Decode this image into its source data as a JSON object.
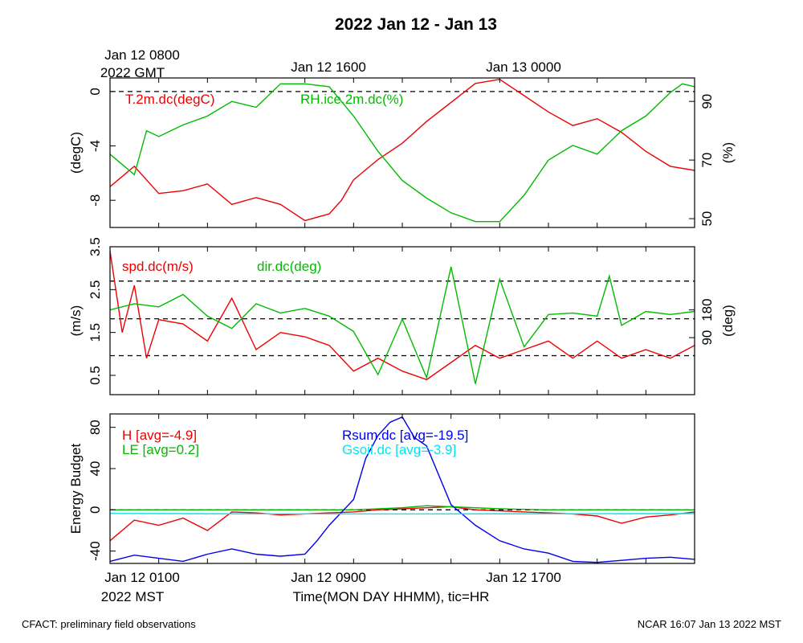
{
  "title": "2022 Jan 12 - Jan 13",
  "top_axis": {
    "first_label_line1": "Jan 12 0800",
    "first_label_line2": "2022 GMT",
    "labels": [
      "Jan 12 1600",
      "Jan 13 0000"
    ]
  },
  "bottom_axis": {
    "labels": [
      "Jan 12 0100",
      "Jan 12 0900",
      "Jan 12 1700"
    ],
    "tz_label": "2022 MST",
    "xlabel": "Time(MON DAY HHMM), tic=HR"
  },
  "footer": {
    "left": "CFACT: preliminary field observations",
    "right": "NCAR 16:07 Jan 13 2022 MST"
  },
  "colors": {
    "red": "#ee0000",
    "green": "#00bb00",
    "blue": "#0000ee",
    "cyan": "#00e5ee",
    "black": "#000000"
  },
  "chart_data": [
    {
      "type": "line",
      "panel": "temperature-humidity",
      "x_range_hours": [
        0,
        24
      ],
      "left_axis": {
        "label": "(degC)",
        "ylim": [
          -10,
          1
        ],
        "ticks": [
          0,
          -4,
          -8
        ],
        "tick_labels": [
          "0",
          "-4",
          "-8"
        ]
      },
      "right_axis": {
        "label": "(%)",
        "ylim": [
          47,
          98
        ],
        "ticks": [
          90,
          70,
          50
        ],
        "tick_labels": [
          "90",
          "70",
          "50"
        ]
      },
      "reference_lines": [
        {
          "axis": "left",
          "y": 0
        }
      ],
      "series": [
        {
          "name": "T.2m.dc(degC)",
          "axis": "left",
          "color": "#ee0000",
          "x": [
            0,
            1,
            2,
            3,
            4,
            5,
            6,
            7,
            8,
            9,
            9.5,
            10,
            11,
            12,
            13,
            14,
            15,
            16,
            17,
            18,
            19,
            20,
            21,
            22,
            23,
            24
          ],
          "values": [
            -7,
            -5.5,
            -7.5,
            -7.3,
            -6.8,
            -8.3,
            -7.8,
            -8.3,
            -9.5,
            -9,
            -8,
            -6.5,
            -5,
            -3.8,
            -2.2,
            -0.8,
            0.6,
            0.9,
            -0.3,
            -1.5,
            -2.5,
            -2,
            -3,
            -4.4,
            -5.5,
            -5.8
          ]
        },
        {
          "name": "RH.ice.2m.dc(%)",
          "axis": "right",
          "color": "#00bb00",
          "x": [
            0,
            1,
            1.5,
            2,
            3,
            4,
            5,
            6,
            7,
            8,
            9,
            10,
            11,
            12,
            13,
            14,
            15,
            16,
            17,
            18,
            19,
            20,
            21,
            22,
            23,
            23.5,
            24
          ],
          "values": [
            72,
            65,
            80,
            78,
            82,
            85,
            90,
            88,
            96,
            96,
            95,
            85,
            73,
            63,
            57,
            52,
            49,
            49,
            58,
            70,
            75,
            72,
            80,
            85,
            93,
            96,
            95
          ]
        }
      ]
    },
    {
      "type": "line",
      "panel": "wind",
      "x_range_hours": [
        0,
        24
      ],
      "left_axis": {
        "label": "(m/s)",
        "ylim": [
          0.05,
          3.5
        ],
        "ticks": [
          3.5,
          2.5,
          1.5,
          0.5
        ],
        "tick_labels": [
          "3.5",
          "2.5",
          "1.5",
          "0.5"
        ]
      },
      "right_axis": {
        "label": "(deg)",
        "ylim": [
          -95,
          385
        ],
        "ticks": [
          180,
          90
        ],
        "tick_labels": [
          "180",
          "90"
        ]
      },
      "reference_lines": [
        {
          "axis": "left",
          "y": 2.7
        },
        {
          "axis": "left",
          "y": 1.82
        },
        {
          "axis": "left",
          "y": 0.96
        }
      ],
      "series": [
        {
          "name": "spd.dc(m/s)",
          "axis": "left",
          "color": "#ee0000",
          "x": [
            0,
            0.5,
            1,
            1.5,
            2,
            3,
            4,
            5,
            6,
            7,
            8,
            9,
            10,
            11,
            12,
            13,
            14,
            15,
            16,
            17,
            18,
            19,
            20,
            21,
            22,
            23,
            24
          ],
          "values": [
            3.4,
            1.5,
            2.6,
            0.9,
            1.8,
            1.7,
            1.3,
            2.3,
            1.1,
            1.5,
            1.4,
            1.2,
            0.6,
            0.9,
            0.6,
            0.4,
            0.8,
            1.2,
            0.9,
            1.1,
            1.3,
            0.9,
            1.3,
            0.9,
            1.1,
            0.9,
            1.2
          ]
        },
        {
          "name": "dir.dc(deg)",
          "axis": "right",
          "color": "#00bb00",
          "x": [
            0,
            1,
            2,
            3,
            4,
            5,
            6,
            7,
            8,
            9,
            10,
            11,
            12,
            13,
            14,
            15,
            16,
            17,
            18,
            19,
            20,
            20.5,
            21,
            22,
            23,
            24
          ],
          "values": [
            180,
            200,
            190,
            230,
            160,
            120,
            200,
            170,
            185,
            160,
            110,
            -30,
            150,
            -40,
            320,
            -60,
            280,
            60,
            165,
            170,
            160,
            290,
            130,
            175,
            165,
            175
          ]
        }
      ]
    },
    {
      "type": "line",
      "panel": "energy-budget",
      "x_range_hours": [
        0,
        24
      ],
      "left_axis": {
        "label": "Energy Budget",
        "ylim": [
          -52,
          93
        ],
        "ticks": [
          80,
          40,
          0,
          -40
        ],
        "tick_labels": [
          "80",
          "40",
          "0",
          "-40"
        ]
      },
      "reference_lines": [
        {
          "axis": "left",
          "y": 0
        }
      ],
      "annotations": [
        "H [avg=-4.9]",
        "LE [avg=0.2]",
        "Rsum.dc [avg=-19.5]",
        "Gsoil.dc [avg=-3.9]"
      ],
      "series": [
        {
          "name": "H",
          "color": "#ee0000",
          "x": [
            0,
            1,
            2,
            3,
            4,
            5,
            6,
            7,
            8,
            9,
            10,
            11,
            12,
            13,
            14,
            15,
            16,
            17,
            18,
            19,
            20,
            21,
            22,
            23,
            24
          ],
          "values": [
            -30,
            -10,
            -15,
            -8,
            -20,
            -2,
            -3,
            -5,
            -4,
            -3,
            -2,
            0,
            1,
            2,
            3,
            0,
            -1,
            -2,
            -3,
            -4,
            -6,
            -13,
            -7,
            -5,
            -2
          ]
        },
        {
          "name": "LE",
          "color": "#00bb00",
          "x": [
            0,
            2,
            4,
            6,
            8,
            10,
            12,
            13,
            14,
            16,
            18,
            20,
            22,
            24
          ],
          "values": [
            0,
            0,
            0,
            0,
            0,
            0,
            2,
            4,
            3,
            1,
            0,
            0,
            0,
            0
          ]
        },
        {
          "name": "Rsum.dc",
          "color": "#0000ee",
          "x": [
            0,
            1,
            2,
            3,
            4,
            5,
            6,
            7,
            8,
            8.5,
            9,
            10,
            10.5,
            11,
            11.5,
            12,
            12.5,
            13,
            14,
            15,
            16,
            17,
            18,
            19,
            20,
            21,
            22,
            23,
            24
          ],
          "values": [
            -50,
            -44,
            -47,
            -50,
            -43,
            -38,
            -43,
            -45,
            -43,
            -30,
            -15,
            10,
            50,
            72,
            85,
            90,
            70,
            62,
            5,
            -15,
            -30,
            -38,
            -42,
            -50,
            -51,
            -49,
            -47,
            -46,
            -48
          ]
        },
        {
          "name": "Gsoil.dc",
          "color": "#00e5ee",
          "x": [
            0,
            6,
            12,
            18,
            24
          ],
          "values": [
            -3.5,
            -3.9,
            -4.0,
            -3.8,
            -3.7
          ]
        }
      ]
    }
  ]
}
